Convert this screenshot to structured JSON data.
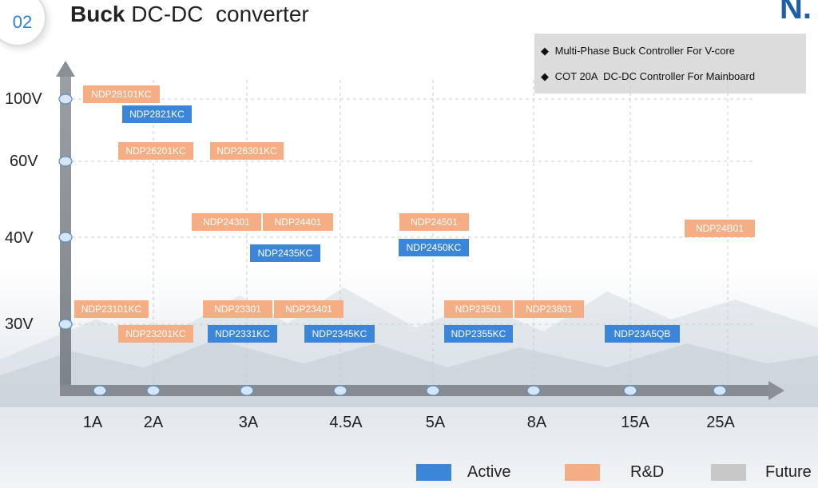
{
  "slide": {
    "number": "02",
    "title_bold": "Buck",
    "title_rest": " DC-DC  converter",
    "logo_text": "N."
  },
  "notes": [
    "Multi-Phase Buck Controller For V-core",
    "COT 20A  DC-DC Controller For Mainboard"
  ],
  "axes": {
    "y_labels": [
      "100V",
      "60V",
      "40V",
      "30V"
    ],
    "x_labels": [
      "1A",
      "2A",
      "3A",
      "4.5A",
      "5A",
      "8A",
      "15A",
      "25A"
    ]
  },
  "chips": [
    {
      "label": "NDP28101KC",
      "status": "R&D",
      "current": "1A",
      "voltage": "100V"
    },
    {
      "label": "NDP2821KC",
      "status": "Active",
      "current": "2A",
      "voltage": "100V"
    },
    {
      "label": "NDP26201KC",
      "status": "R&D",
      "current": "2A",
      "voltage": "60V"
    },
    {
      "label": "NDP26301KC",
      "status": "R&D",
      "current": "3A",
      "voltage": "60V"
    },
    {
      "label": "NDP24301",
      "status": "R&D",
      "current": "3A",
      "voltage": "40V"
    },
    {
      "label": "NDP24401",
      "status": "R&D",
      "current": "3A",
      "voltage": "40V"
    },
    {
      "label": "NDP2435KC",
      "status": "Active",
      "current": "3A",
      "voltage": "40V"
    },
    {
      "label": "NDP24501",
      "status": "R&D",
      "current": "5A",
      "voltage": "40V"
    },
    {
      "label": "NDP2450KC",
      "status": "Active",
      "current": "5A",
      "voltage": "40V"
    },
    {
      "label": "NDP24B01",
      "status": "R&D",
      "current": "25A",
      "voltage": "40V"
    },
    {
      "label": "NDP23101KC",
      "status": "R&D",
      "current": "1A",
      "voltage": "30V"
    },
    {
      "label": "NDP23301",
      "status": "R&D",
      "current": "3A",
      "voltage": "30V"
    },
    {
      "label": "NDP23401",
      "status": "R&D",
      "current": "4.5A",
      "voltage": "30V"
    },
    {
      "label": "NDP23501",
      "status": "R&D",
      "current": "5A",
      "voltage": "30V"
    },
    {
      "label": "NDP23801",
      "status": "R&D",
      "current": "8A",
      "voltage": "30V"
    },
    {
      "label": "NDP23201KC",
      "status": "R&D",
      "current": "2A",
      "voltage": "30V"
    },
    {
      "label": "NDP2331KC",
      "status": "Active",
      "current": "3A",
      "voltage": "30V"
    },
    {
      "label": "NDP2345KC",
      "status": "Active",
      "current": "4.5A",
      "voltage": "30V"
    },
    {
      "label": "NDP2355KC",
      "status": "Active",
      "current": "5A",
      "voltage": "30V"
    },
    {
      "label": "NDP23A5QB",
      "status": "Active",
      "current": "15A",
      "voltage": "30V"
    }
  ],
  "legend": [
    {
      "label": "Active",
      "color": "#3b86d8"
    },
    {
      "label": "R&D",
      "color": "#f5ae83"
    },
    {
      "label": "Future",
      "color": "#c8c8c8"
    }
  ]
}
